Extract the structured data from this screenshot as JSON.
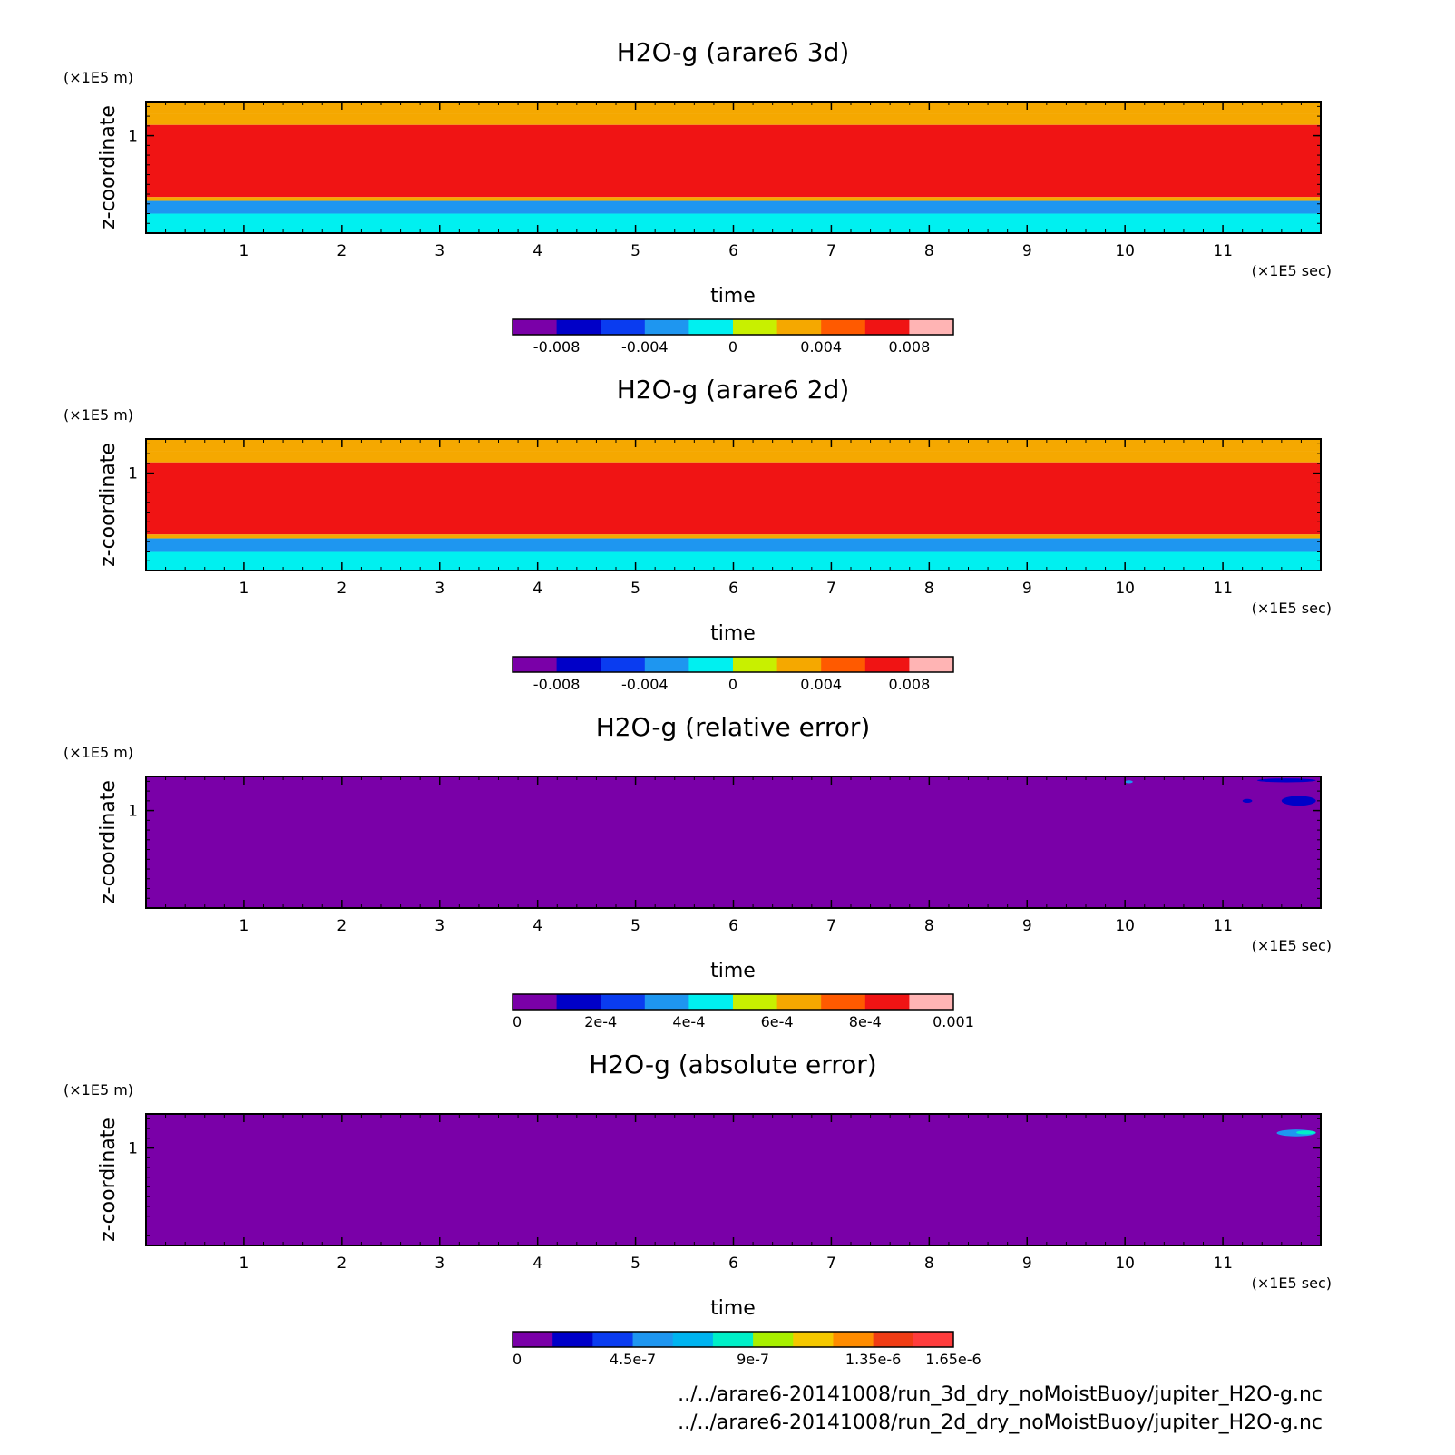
{
  "figure": {
    "footer_lines": [
      "../../arare6-20141008/run_3d_dry_noMoistBuoy/jupiter_H2O-g.nc",
      "../../arare6-20141008/run_2d_dry_noMoistBuoy/jupiter_H2O-g.nc"
    ]
  },
  "chart_data": [
    {
      "type": "heatmap",
      "title": "H2O-g (arare6 3d)",
      "xlabel": "time",
      "ylabel": "z-coordinate",
      "x_unit": "(×1E5 sec)",
      "y_unit": "(×1E5 m)",
      "xlim": [
        0,
        12
      ],
      "ylim": [
        0,
        1.35
      ],
      "x_ticks": [
        1,
        2,
        3,
        4,
        5,
        6,
        7,
        8,
        9,
        10,
        11
      ],
      "y_ticks": [
        1
      ],
      "colorbar": {
        "colors": [
          "#7a00a8",
          "#0000c8",
          "#0a3cf0",
          "#1e96f0",
          "#00f0f0",
          "#c8f000",
          "#f5a800",
          "#ff5a00",
          "#f01414",
          "#ffb4b4"
        ],
        "tick_values": [
          -0.008,
          -0.004,
          0,
          0.004,
          0.008
        ],
        "tick_labels": [
          "-0.008",
          "-0.004",
          "0",
          "0.004",
          "0.008"
        ],
        "range": [
          -0.01,
          0.01
        ]
      },
      "field_bands": [
        {
          "z": [
            1.22,
            1.35
          ],
          "value": 0.002
        },
        {
          "z": [
            1.11,
            1.22
          ],
          "value": 0.003
        },
        {
          "z": [
            0.37,
            1.11
          ],
          "value": 0.0068
        },
        {
          "z": [
            0.33,
            0.37
          ],
          "value": 0.003
        },
        {
          "z": [
            0.2,
            0.33
          ],
          "value": -0.003
        },
        {
          "z": [
            0.0,
            0.2
          ],
          "value": -0.001
        }
      ]
    },
    {
      "type": "heatmap",
      "title": "H2O-g (arare6 2d)",
      "xlabel": "time",
      "ylabel": "z-coordinate",
      "x_unit": "(×1E5 sec)",
      "y_unit": "(×1E5 m)",
      "xlim": [
        0,
        12
      ],
      "ylim": [
        0,
        1.35
      ],
      "x_ticks": [
        1,
        2,
        3,
        4,
        5,
        6,
        7,
        8,
        9,
        10,
        11
      ],
      "y_ticks": [
        1
      ],
      "colorbar": {
        "colors": [
          "#7a00a8",
          "#0000c8",
          "#0a3cf0",
          "#1e96f0",
          "#00f0f0",
          "#c8f000",
          "#f5a800",
          "#ff5a00",
          "#f01414",
          "#ffb4b4"
        ],
        "tick_values": [
          -0.008,
          -0.004,
          0,
          0.004,
          0.008
        ],
        "tick_labels": [
          "-0.008",
          "-0.004",
          "0",
          "0.004",
          "0.008"
        ],
        "range": [
          -0.01,
          0.01
        ]
      },
      "field_bands": [
        {
          "z": [
            1.22,
            1.35
          ],
          "value": 0.002
        },
        {
          "z": [
            1.11,
            1.22
          ],
          "value": 0.003
        },
        {
          "z": [
            0.37,
            1.11
          ],
          "value": 0.0068
        },
        {
          "z": [
            0.33,
            0.37
          ],
          "value": 0.003
        },
        {
          "z": [
            0.2,
            0.33
          ],
          "value": -0.003
        },
        {
          "z": [
            0.0,
            0.2
          ],
          "value": -0.001
        }
      ]
    },
    {
      "type": "heatmap",
      "title": "H2O-g (relative error)",
      "xlabel": "time",
      "ylabel": "z-coordinate",
      "x_unit": "(×1E5 sec)",
      "y_unit": "(×1E5 m)",
      "xlim": [
        0,
        12
      ],
      "ylim": [
        0,
        1.35
      ],
      "x_ticks": [
        1,
        2,
        3,
        4,
        5,
        6,
        7,
        8,
        9,
        10,
        11
      ],
      "y_ticks": [
        1
      ],
      "colorbar": {
        "colors": [
          "#7a00a8",
          "#0000c8",
          "#0a3cf0",
          "#1e96f0",
          "#00f0f0",
          "#c8f000",
          "#f5a800",
          "#ff5a00",
          "#f01414",
          "#ffb4b4"
        ],
        "tick_values": [
          0,
          0.0002,
          0.0004,
          0.0006,
          0.0008,
          0.001
        ],
        "tick_labels": [
          "0",
          "2e-4",
          "4e-4",
          "6e-4",
          "8e-4",
          "0.001"
        ],
        "range": [
          0,
          0.001
        ]
      },
      "field_bands": [
        {
          "z": [
            0.0,
            1.35
          ],
          "value": 0
        }
      ],
      "features": [
        {
          "x": [
            11.35,
            11.95
          ],
          "z": [
            1.29,
            1.33
          ],
          "value": 0.00015
        },
        {
          "x": [
            11.2,
            11.3
          ],
          "z": [
            1.08,
            1.12
          ],
          "value": 0.00015
        },
        {
          "x": [
            11.6,
            11.95
          ],
          "z": [
            1.05,
            1.15
          ],
          "value": 0.00015
        },
        {
          "x": [
            10.0,
            10.08
          ],
          "z": [
            1.28,
            1.31
          ],
          "value": 0.0003
        }
      ]
    },
    {
      "type": "heatmap",
      "title": "H2O-g (absolute error)",
      "xlabel": "time",
      "ylabel": "z-coordinate",
      "x_unit": "(×1E5 sec)",
      "y_unit": "(×1E5 m)",
      "xlim": [
        0,
        12
      ],
      "ylim": [
        0,
        1.35
      ],
      "x_ticks": [
        1,
        2,
        3,
        4,
        5,
        6,
        7,
        8,
        9,
        10,
        11
      ],
      "y_ticks": [
        1
      ],
      "colorbar": {
        "colors": [
          "#7a00a8",
          "#0000c8",
          "#0a3cf0",
          "#1e96f0",
          "#00b4f0",
          "#00f0c8",
          "#a8f000",
          "#f5c800",
          "#ff8c00",
          "#f03c14",
          "#ff3c3c"
        ],
        "tick_values": [
          0,
          4.5e-07,
          9e-07,
          1.35e-06,
          1.65e-06
        ],
        "tick_labels": [
          "0",
          "4.5e-7",
          "9e-7",
          "1.35e-6",
          "1.65e-6"
        ],
        "range": [
          0,
          1.65e-06
        ]
      },
      "field_bands": [
        {
          "z": [
            0.0,
            1.35
          ],
          "value": 0
        }
      ],
      "features": [
        {
          "x": [
            11.15,
            11.95
          ],
          "z": [
            1.07,
            1.21
          ],
          "value": 1.5e-07
        },
        {
          "x": [
            11.55,
            11.95
          ],
          "z": [
            1.12,
            1.19
          ],
          "value": 4.5e-07
        },
        {
          "x": [
            11.75,
            11.95
          ],
          "z": [
            1.14,
            1.18
          ],
          "value": 7.5e-07
        },
        {
          "x": [
            10.35,
            10.45
          ],
          "z": [
            1.18,
            1.22
          ],
          "value": 1.5e-07
        },
        {
          "x": [
            10.6,
            10.7
          ],
          "z": [
            1.18,
            1.21
          ],
          "value": 1.5e-07
        }
      ]
    }
  ]
}
